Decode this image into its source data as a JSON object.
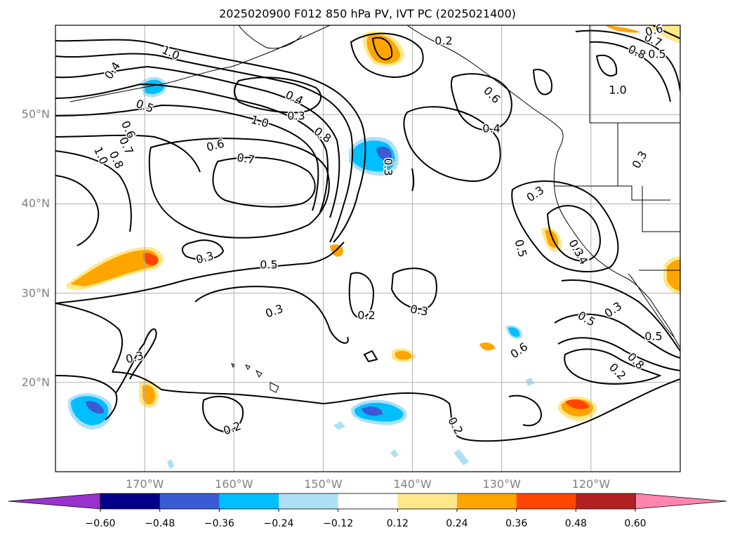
{
  "title": "2025020900 F012 850 hPa PV, IVT PC (2025021400)",
  "map": {
    "projection": "cylindrical",
    "lon_range": [
      -180,
      -110
    ],
    "lat_range": [
      10,
      60
    ],
    "lat_labels": [
      {
        "lat": 50,
        "text": "50°N"
      },
      {
        "lat": 40,
        "text": "40°N"
      },
      {
        "lat": 30,
        "text": "30°N"
      },
      {
        "lat": 20,
        "text": "20°N"
      }
    ],
    "lon_labels": [
      {
        "lon": -170,
        "text": "170°W"
      },
      {
        "lon": -160,
        "text": "160°W"
      },
      {
        "lon": -150,
        "text": "150°W"
      },
      {
        "lon": -140,
        "text": "140°W"
      },
      {
        "lon": -130,
        "text": "130°W"
      },
      {
        "lon": -120,
        "text": "120°W"
      }
    ],
    "contour_labels": [
      "1.0",
      "0.4",
      "0.5",
      "0.6",
      "0.7",
      "0.8",
      "1.0",
      "0.4",
      "0.3",
      "1.0",
      "0.8",
      "0.6",
      "0.7",
      "0.3",
      "0.5",
      "0.3",
      "0.3",
      "0.2",
      "0.3",
      "0.3",
      "0.2",
      "0.2",
      "0.2",
      "0.6",
      "0.4",
      "0.3",
      "0.5",
      "0.4",
      "0.5",
      "0.3",
      "0.5",
      "0.6",
      "0.2",
      "0.8",
      "0.7",
      "0.8",
      "0.5",
      "0.6",
      "1.0",
      "0.3",
      "0.3"
    ],
    "grid": true,
    "coastlines": true
  },
  "colorbar": {
    "ticks": [
      "−0.60",
      "−0.48",
      "−0.36",
      "−0.24",
      "−0.12",
      "0.12",
      "0.24",
      "0.36",
      "0.48",
      "0.60"
    ],
    "colors": [
      "#9932CC",
      "#00008B",
      "#3B5BD6",
      "#00BFFF",
      "#ADE0F7",
      "#FFFFFF",
      "#FFE88A",
      "#FFA500",
      "#FF4500",
      "#B22222",
      "#FF85B0"
    ]
  }
}
